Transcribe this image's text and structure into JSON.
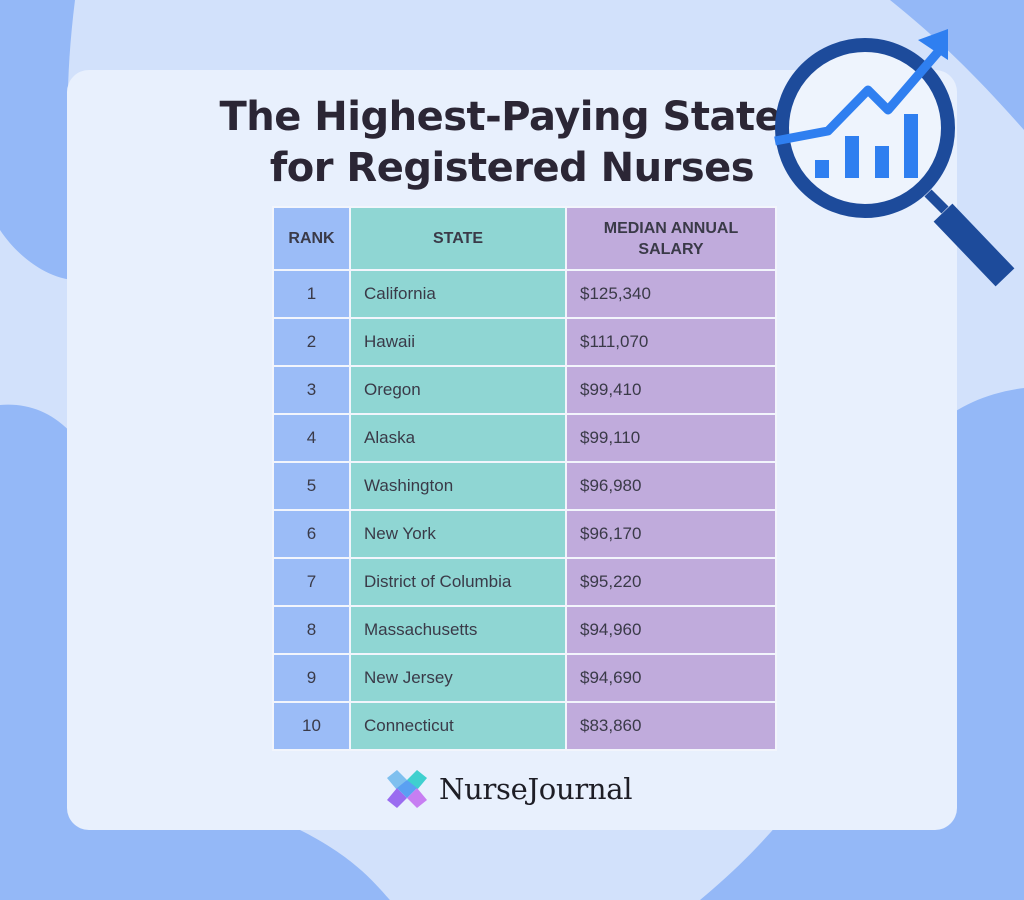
{
  "title": "The Highest-Paying States\nfor Registered Nurses",
  "table": {
    "headers": {
      "rank": "RANK",
      "state": "STATE",
      "salary": "MEDIAN ANNUAL\nSALARY"
    },
    "rows": [
      {
        "rank": "1",
        "state": "California",
        "salary": "$125,340"
      },
      {
        "rank": "2",
        "state": "Hawaii",
        "salary": "$111,070"
      },
      {
        "rank": "3",
        "state": "Oregon",
        "salary": "$99,410"
      },
      {
        "rank": "4",
        "state": "Alaska",
        "salary": "$99,110"
      },
      {
        "rank": "5",
        "state": "Washington",
        "salary": "$96,980"
      },
      {
        "rank": "6",
        "state": "New York",
        "salary": "$96,170"
      },
      {
        "rank": "7",
        "state": "District of Columbia",
        "salary": "$95,220"
      },
      {
        "rank": "8",
        "state": "Massachusetts",
        "salary": "$94,960"
      },
      {
        "rank": "9",
        "state": "New Jersey",
        "salary": "$94,690"
      },
      {
        "rank": "10",
        "state": "Connecticut",
        "salary": "$83,860"
      }
    ]
  },
  "chart_data": {
    "type": "table",
    "title": "The Highest-Paying States for Registered Nurses",
    "columns": [
      "RANK",
      "STATE",
      "MEDIAN ANNUAL SALARY"
    ],
    "rows": [
      [
        1,
        "California",
        125340
      ],
      [
        2,
        "Hawaii",
        111070
      ],
      [
        3,
        "Oregon",
        99410
      ],
      [
        4,
        "Alaska",
        99110
      ],
      [
        5,
        "Washington",
        96980
      ],
      [
        6,
        "New York",
        96170
      ],
      [
        7,
        "District of Columbia",
        95220
      ],
      [
        8,
        "Massachusetts",
        94960
      ],
      [
        9,
        "New Jersey",
        94690
      ],
      [
        10,
        "Connecticut",
        83860
      ]
    ]
  },
  "brand": {
    "name": "NurseJournal"
  },
  "icons": {
    "decoration": "magnifier-trend-icon",
    "logo": "nursejournal-logo-icon"
  },
  "colors": {
    "rank_column": "#9bbcf7",
    "state_column": "#8fd6d3",
    "salary_column": "#c0abdc",
    "background_blob": "#94b8f7",
    "card": "#e8f0fd",
    "icon_dark": "#1d4b9b",
    "icon_accent": "#2f7ff0"
  }
}
